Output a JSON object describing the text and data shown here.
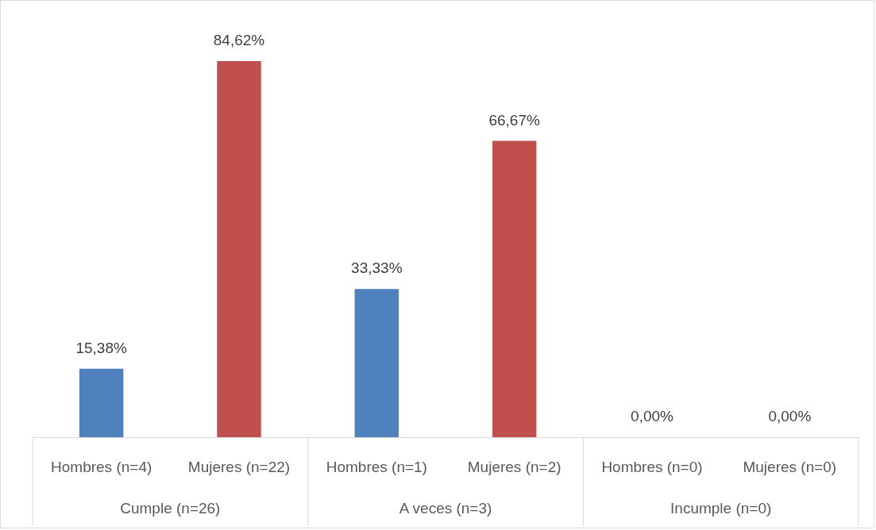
{
  "chart_data": {
    "type": "bar",
    "categories": [
      "Hombres (n=4)",
      "Mujeres (n=22)",
      "Hombres (n=1)",
      "Mujeres (n=2)",
      "Hombres (n=0)",
      "Mujeres (n=0)"
    ],
    "values": [
      15.38,
      84.62,
      33.33,
      66.67,
      0,
      0
    ],
    "value_labels": [
      "15,38%",
      "84,62%",
      "33,33%",
      "66,67%",
      "0,00%",
      "0,00%"
    ],
    "colors": [
      "#4f81bd",
      "#c0504d",
      "#4f81bd",
      "#c0504d",
      "#4f81bd",
      "#c0504d"
    ],
    "annotations": [
      "Cumple (n=26)",
      "A veces (n=3)",
      "Incumple (n=0)"
    ]
  }
}
